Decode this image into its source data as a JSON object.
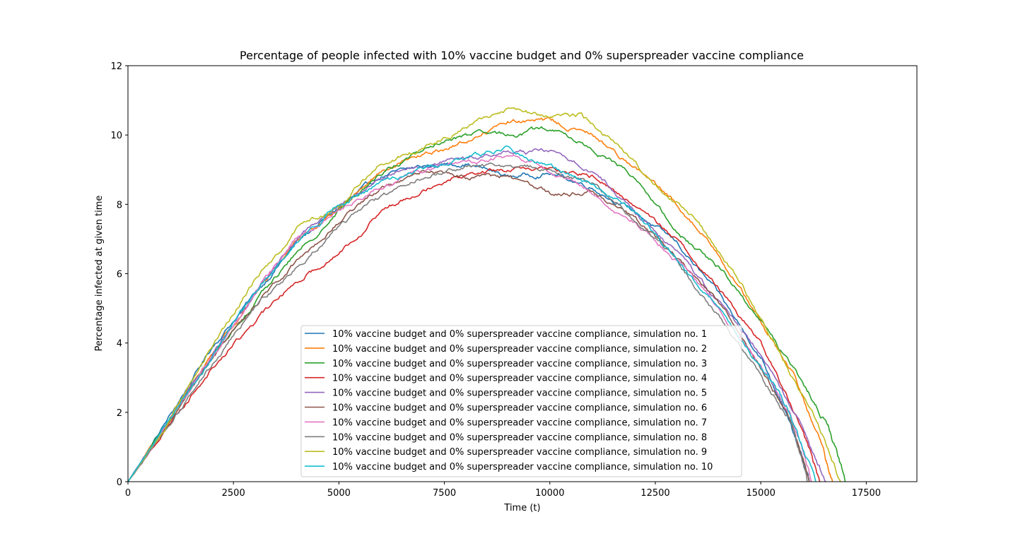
{
  "chart_data": {
    "type": "line",
    "title": "Percentage of people infected with 10% vaccine budget and 0% superspreader vaccine compliance",
    "xlabel": "Time (t)",
    "ylabel": "Percentage infected at given time",
    "xlim": [
      0,
      18700
    ],
    "ylim": [
      0,
      12
    ],
    "xticks": [
      0,
      2500,
      5000,
      7500,
      10000,
      12500,
      15000,
      17500
    ],
    "yticks": [
      0,
      2,
      4,
      6,
      8,
      10,
      12
    ],
    "grid": false,
    "legend_placement": "lower center",
    "series": [
      {
        "name": "10% vaccine budget and 0% superspreader vaccine compliance, simulation no. 1",
        "color": "#1f77b4",
        "x": [
          0,
          1000,
          2000,
          3000,
          4000,
          5000,
          6000,
          7000,
          8000,
          9000,
          10000,
          11000,
          12000,
          13000,
          14000,
          15000,
          15500,
          16000,
          16150
        ],
        "y": [
          0,
          1.9,
          3.9,
          5.4,
          6.9,
          7.9,
          8.8,
          9.1,
          9.2,
          8.8,
          8.9,
          8.5,
          7.8,
          6.9,
          5.4,
          3.6,
          2.3,
          0.6,
          0
        ]
      },
      {
        "name": "10% vaccine budget and 0% superspreader vaccine compliance, simulation no. 2",
        "color": "#ff7f0e",
        "x": [
          0,
          1000,
          2000,
          3000,
          4000,
          5000,
          6000,
          7000,
          8000,
          9000,
          10000,
          11000,
          12000,
          13000,
          14000,
          15000,
          15800,
          16400,
          16700
        ],
        "y": [
          0,
          1.8,
          3.7,
          5.4,
          7.0,
          7.9,
          8.9,
          9.4,
          9.8,
          10.4,
          10.4,
          10.0,
          9.1,
          8.0,
          6.6,
          4.6,
          3.0,
          1.2,
          0
        ]
      },
      {
        "name": "10% vaccine budget and 0% superspreader vaccine compliance, simulation no. 3",
        "color": "#2ca02c",
        "x": [
          0,
          1000,
          2000,
          3000,
          4000,
          5000,
          6000,
          7000,
          8000,
          9000,
          10000,
          11000,
          12000,
          13000,
          14000,
          15000,
          16000,
          16600,
          17000
        ],
        "y": [
          0,
          1.8,
          3.6,
          5.2,
          6.6,
          7.8,
          8.9,
          9.6,
          10.0,
          10.0,
          10.2,
          9.6,
          8.8,
          7.2,
          6.2,
          4.7,
          2.8,
          1.6,
          0
        ]
      },
      {
        "name": "10% vaccine budget and 0% superspreader vaccine compliance, simulation no. 4",
        "color": "#d62728",
        "x": [
          0,
          1000,
          2000,
          3000,
          4000,
          5000,
          6000,
          7000,
          8000,
          9000,
          10000,
          11000,
          12000,
          13000,
          14000,
          15000,
          16000,
          16400
        ],
        "y": [
          0,
          1.7,
          3.3,
          4.6,
          5.8,
          6.6,
          7.8,
          8.5,
          8.9,
          9.0,
          9.0,
          8.8,
          8.0,
          7.0,
          5.6,
          4.0,
          1.5,
          0
        ]
      },
      {
        "name": "10% vaccine budget and 0% superspreader vaccine compliance, simulation no. 5",
        "color": "#9467bd",
        "x": [
          0,
          1000,
          2000,
          3000,
          4000,
          5000,
          6000,
          7000,
          8000,
          9000,
          10000,
          11000,
          12000,
          13000,
          14000,
          15000,
          16000,
          16550
        ],
        "y": [
          0,
          1.8,
          3.7,
          5.4,
          7.0,
          8.0,
          8.8,
          9.1,
          9.3,
          9.5,
          9.5,
          9.0,
          7.8,
          6.6,
          5.2,
          3.7,
          1.6,
          0
        ]
      },
      {
        "name": "10% vaccine budget and 0% superspreader vaccine compliance, simulation no. 6",
        "color": "#8c564b",
        "x": [
          0,
          1000,
          2000,
          3000,
          4000,
          5000,
          6000,
          7000,
          8000,
          9000,
          10000,
          11000,
          12000,
          13000,
          14000,
          15000,
          15700,
          16150
        ],
        "y": [
          0,
          1.7,
          3.5,
          5.1,
          6.4,
          7.5,
          8.5,
          9.0,
          8.8,
          8.8,
          8.3,
          8.4,
          7.6,
          6.5,
          5.2,
          3.3,
          1.8,
          0
        ]
      },
      {
        "name": "10% vaccine budget and 0% superspreader vaccine compliance, simulation no. 7",
        "color": "#e377c2",
        "x": [
          0,
          1000,
          2000,
          3000,
          4000,
          5000,
          6000,
          7000,
          8000,
          9000,
          10000,
          11000,
          12000,
          13000,
          14000,
          15000,
          15700,
          16200
        ],
        "y": [
          0,
          1.7,
          3.6,
          5.4,
          7.0,
          7.9,
          8.5,
          9.0,
          9.2,
          9.4,
          9.0,
          8.3,
          7.5,
          6.4,
          5.0,
          3.3,
          2.0,
          0
        ]
      },
      {
        "name": "10% vaccine budget and 0% superspreader vaccine compliance, simulation no. 8",
        "color": "#7f7f7f",
        "x": [
          0,
          1000,
          2000,
          3000,
          4000,
          5000,
          6000,
          7000,
          8000,
          9000,
          10000,
          11000,
          12000,
          13000,
          14000,
          15000,
          15700,
          16100
        ],
        "y": [
          0,
          1.7,
          3.4,
          5.0,
          6.2,
          7.4,
          8.2,
          8.8,
          9.1,
          9.1,
          9.0,
          8.6,
          7.6,
          6.4,
          4.8,
          3.0,
          1.8,
          0
        ]
      },
      {
        "name": "10% vaccine budget and 0% superspreader vaccine compliance, simulation no. 9",
        "color": "#bcbd22",
        "x": [
          0,
          1000,
          2000,
          3000,
          4000,
          5000,
          6000,
          7000,
          8000,
          9000,
          10000,
          10700,
          11500,
          12500,
          13500,
          14500,
          15500,
          16300,
          16900
        ],
        "y": [
          0,
          1.8,
          3.9,
          5.8,
          7.3,
          8.0,
          9.2,
          9.6,
          10.3,
          10.8,
          10.5,
          10.6,
          9.8,
          8.6,
          7.5,
          5.8,
          3.6,
          1.8,
          0
        ]
      },
      {
        "name": "10% vaccine budget and 0% superspreader vaccine compliance, simulation no. 10",
        "color": "#17becf",
        "x": [
          0,
          1000,
          2000,
          3000,
          4000,
          5000,
          6000,
          7000,
          8000,
          9000,
          10000,
          11000,
          12000,
          13000,
          14000,
          15000,
          15600,
          16300
        ],
        "y": [
          0,
          1.8,
          3.6,
          5.4,
          6.9,
          8.0,
          8.6,
          9.0,
          9.3,
          9.6,
          9.1,
          8.6,
          7.8,
          6.5,
          5.0,
          3.3,
          2.2,
          0
        ]
      }
    ]
  }
}
